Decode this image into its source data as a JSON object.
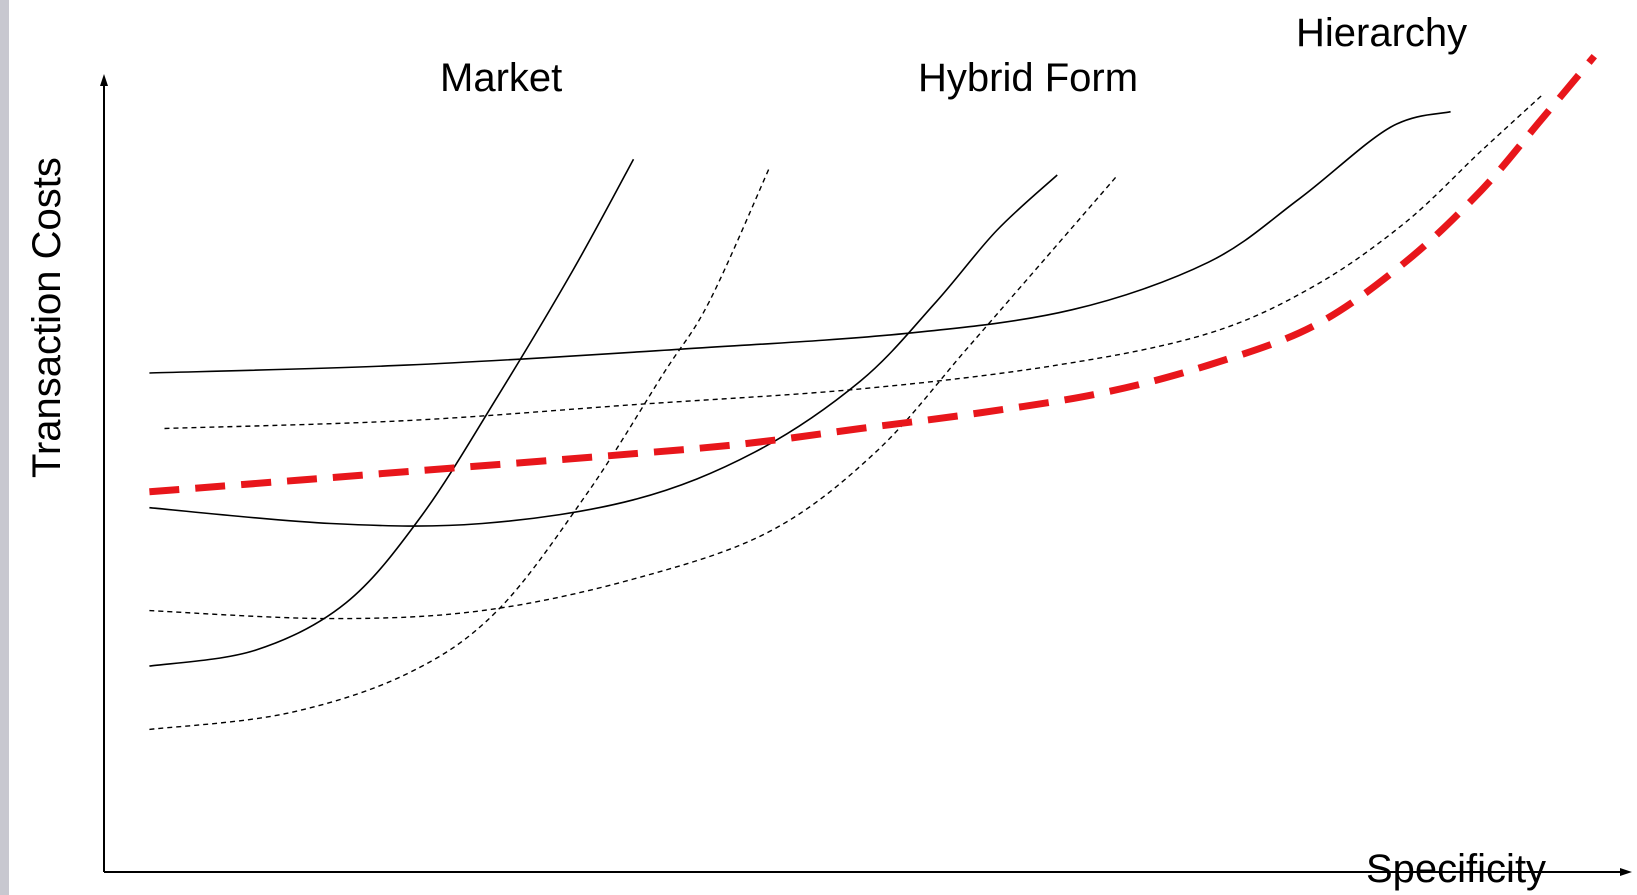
{
  "chart_data": {
    "type": "line",
    "xlabel": "Specificity",
    "ylabel": "Transaction Costs",
    "xlim": [
      0,
      10
    ],
    "ylim": [
      0,
      10
    ],
    "grid": false,
    "legend": "none",
    "colors": {
      "curve": "#000000",
      "envelope": "#e8161b",
      "axis": "#000000"
    },
    "series": [
      {
        "name": "Market",
        "style": "solid",
        "points": [
          [
            0.3,
            2.6
          ],
          [
            1.0,
            2.8
          ],
          [
            1.6,
            3.4
          ],
          [
            2.1,
            4.5
          ],
          [
            2.6,
            6.0
          ],
          [
            3.1,
            7.6
          ],
          [
            3.5,
            9.0
          ]
        ]
      },
      {
        "name": "",
        "style": "dashed",
        "points": [
          [
            0.3,
            1.8
          ],
          [
            1.2,
            2.0
          ],
          [
            2.0,
            2.5
          ],
          [
            2.6,
            3.3
          ],
          [
            3.2,
            4.8
          ],
          [
            3.7,
            6.3
          ],
          [
            4.0,
            7.2
          ],
          [
            4.4,
            8.9
          ]
        ]
      },
      {
        "name": "Hybrid Form",
        "style": "solid",
        "points": [
          [
            0.3,
            4.6
          ],
          [
            1.5,
            4.4
          ],
          [
            2.5,
            4.4
          ],
          [
            3.5,
            4.7
          ],
          [
            4.3,
            5.3
          ],
          [
            5.0,
            6.2
          ],
          [
            5.5,
            7.2
          ],
          [
            5.9,
            8.1
          ],
          [
            6.3,
            8.8
          ]
        ]
      },
      {
        "name": "",
        "style": "dashed",
        "points": [
          [
            0.3,
            3.3
          ],
          [
            1.5,
            3.2
          ],
          [
            2.5,
            3.3
          ],
          [
            3.5,
            3.7
          ],
          [
            4.4,
            4.3
          ],
          [
            5.1,
            5.3
          ],
          [
            5.7,
            6.6
          ],
          [
            6.2,
            7.7
          ],
          [
            6.7,
            8.8
          ]
        ]
      },
      {
        "name": "Hierarchy",
        "style": "solid",
        "points": [
          [
            0.3,
            6.3
          ],
          [
            2.0,
            6.4
          ],
          [
            3.8,
            6.6
          ],
          [
            5.3,
            6.8
          ],
          [
            6.4,
            7.1
          ],
          [
            7.3,
            7.7
          ],
          [
            7.9,
            8.5
          ],
          [
            8.5,
            9.4
          ],
          [
            8.9,
            9.6
          ]
        ]
      },
      {
        "name": "",
        "style": "dashed",
        "points": [
          [
            0.4,
            5.6
          ],
          [
            2.0,
            5.7
          ],
          [
            3.5,
            5.9
          ],
          [
            5.0,
            6.1
          ],
          [
            6.3,
            6.4
          ],
          [
            7.3,
            6.8
          ],
          [
            8.0,
            7.4
          ],
          [
            8.6,
            8.2
          ],
          [
            9.1,
            9.1
          ],
          [
            9.5,
            9.8
          ]
        ]
      },
      {
        "name": "",
        "style": "dashed-thick-red",
        "points": [
          [
            0.3,
            4.8
          ],
          [
            1.3,
            4.95
          ],
          [
            2.3,
            5.1
          ],
          [
            3.3,
            5.25
          ],
          [
            4.2,
            5.4
          ],
          [
            5.0,
            5.6
          ],
          [
            5.8,
            5.8
          ],
          [
            6.6,
            6.05
          ],
          [
            7.3,
            6.4
          ],
          [
            8.0,
            6.9
          ],
          [
            8.6,
            7.7
          ],
          [
            9.1,
            8.6
          ],
          [
            9.5,
            9.5
          ],
          [
            9.85,
            10.3
          ]
        ]
      }
    ]
  }
}
